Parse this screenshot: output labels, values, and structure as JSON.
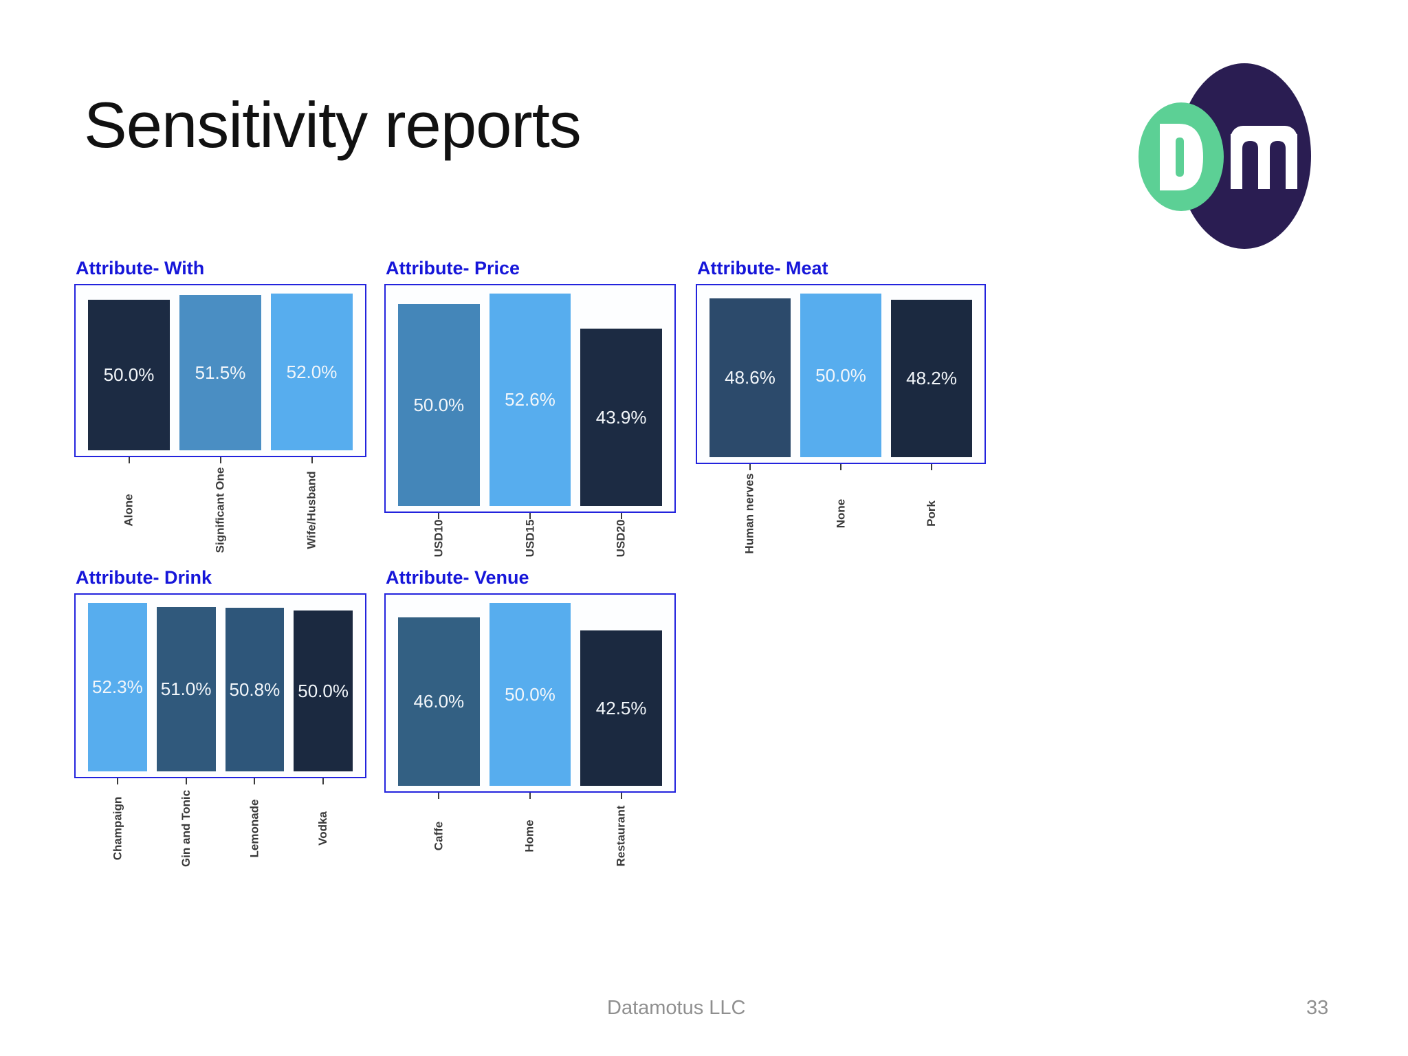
{
  "slide": {
    "title": "Sensitivity reports",
    "footer": {
      "company": "Datamotus LLC",
      "page_number": "33"
    }
  },
  "theme": {
    "frame_border_color": "#2323dd",
    "chart_title_color": "#1616d9",
    "axis_label_color": "#3b3b3b",
    "bar_value_label_color": "#f2f6fa",
    "logo_dark_color": "#2a1d52",
    "logo_green_color": "#5cd095"
  },
  "chart_data": [
    {
      "type": "bar",
      "title": "Attribute- With",
      "categories": [
        "Alone",
        "Significant One",
        "Wife/Husband"
      ],
      "values": [
        50.0,
        51.5,
        52.0
      ],
      "value_labels": [
        "50.0%",
        "51.5%",
        "52.0%"
      ],
      "bar_colors": [
        "#1c2b43",
        "#4a8ec3",
        "#57adee"
      ],
      "ylabel": "",
      "xlabel": "",
      "grid": false,
      "legend": "none"
    },
    {
      "type": "bar",
      "title": "Attribute- Price",
      "categories": [
        "USD10",
        "USD15",
        "USD20"
      ],
      "values": [
        50.0,
        52.6,
        43.9
      ],
      "value_labels": [
        "50.0%",
        "52.6%",
        "43.9%"
      ],
      "bar_colors": [
        "#4486b9",
        "#57adee",
        "#1c2b43"
      ],
      "ylabel": "",
      "xlabel": "",
      "grid": false,
      "legend": "none"
    },
    {
      "type": "bar",
      "title": "Attribute- Meat",
      "categories": [
        "Human nerves",
        "None",
        "Pork"
      ],
      "values": [
        48.6,
        50.0,
        48.2
      ],
      "value_labels": [
        "48.6%",
        "50.0%",
        "48.2%"
      ],
      "bar_colors": [
        "#2c4a6b",
        "#57adee",
        "#1b2940"
      ],
      "ylabel": "",
      "xlabel": "",
      "grid": false,
      "legend": "none"
    },
    {
      "type": "bar",
      "title": "Attribute- Drink",
      "categories": [
        "Champaign",
        "Gin and Tonic",
        "Lemonade",
        "Vodka"
      ],
      "values": [
        52.3,
        51.0,
        50.8,
        50.0
      ],
      "value_labels": [
        "52.3%",
        "51.0%",
        "50.8%",
        "50.0%"
      ],
      "bar_colors": [
        "#57adee",
        "#30597c",
        "#2e567a",
        "#1b2940"
      ],
      "ylabel": "",
      "xlabel": "",
      "grid": false,
      "legend": "none"
    },
    {
      "type": "bar",
      "title": "Attribute- Venue",
      "categories": [
        "Caffe",
        "Home",
        "Restaurant"
      ],
      "values": [
        46.0,
        50.0,
        42.5
      ],
      "value_labels": [
        "46.0%",
        "50.0%",
        "42.5%"
      ],
      "bar_colors": [
        "#336083",
        "#57adee",
        "#1b2940"
      ],
      "ylabel": "",
      "xlabel": "",
      "grid": false,
      "legend": "none"
    }
  ]
}
